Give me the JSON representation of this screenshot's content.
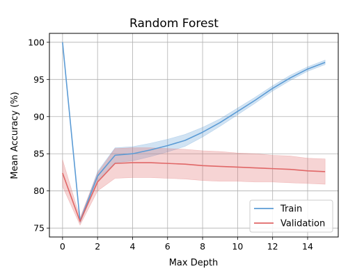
{
  "chart_data": {
    "type": "line",
    "title": "Random Forest",
    "xlabel": "Max Depth",
    "ylabel": "Mean Accuracy (%)",
    "xlim": [
      -0.75,
      15.75
    ],
    "ylim": [
      73.8,
      101.2
    ],
    "xticks": [
      0,
      2,
      4,
      6,
      8,
      10,
      12,
      14
    ],
    "yticks": [
      75,
      80,
      85,
      90,
      95,
      100
    ],
    "grid": true,
    "legend_position": "lower-right",
    "x": [
      0,
      1,
      2,
      3,
      4,
      5,
      6,
      7,
      8,
      9,
      10,
      11,
      12,
      13,
      14,
      15
    ],
    "series": [
      {
        "name": "Train",
        "color": "#5b9bd5",
        "values": [
          100,
          75.9,
          82.0,
          84.8,
          85.0,
          85.5,
          86.1,
          86.8,
          87.9,
          89.2,
          90.7,
          92.2,
          93.8,
          95.2,
          96.4,
          97.3
        ],
        "band": [
          0.1,
          0.25,
          0.6,
          1.0,
          0.95,
          0.9,
          0.85,
          0.8,
          0.65,
          0.5,
          0.45,
          0.4,
          0.35,
          0.35,
          0.3,
          0.3
        ]
      },
      {
        "name": "Validation",
        "color": "#e06666",
        "values": [
          82.4,
          75.9,
          81.2,
          83.7,
          83.8,
          83.8,
          83.7,
          83.6,
          83.4,
          83.3,
          83.2,
          83.1,
          83.0,
          82.9,
          82.7,
          82.6
        ],
        "band": [
          1.8,
          0.5,
          1.2,
          2.0,
          2.0,
          2.0,
          2.0,
          2.0,
          2.0,
          2.0,
          1.9,
          1.9,
          1.8,
          1.8,
          1.7,
          1.7
        ]
      }
    ]
  }
}
